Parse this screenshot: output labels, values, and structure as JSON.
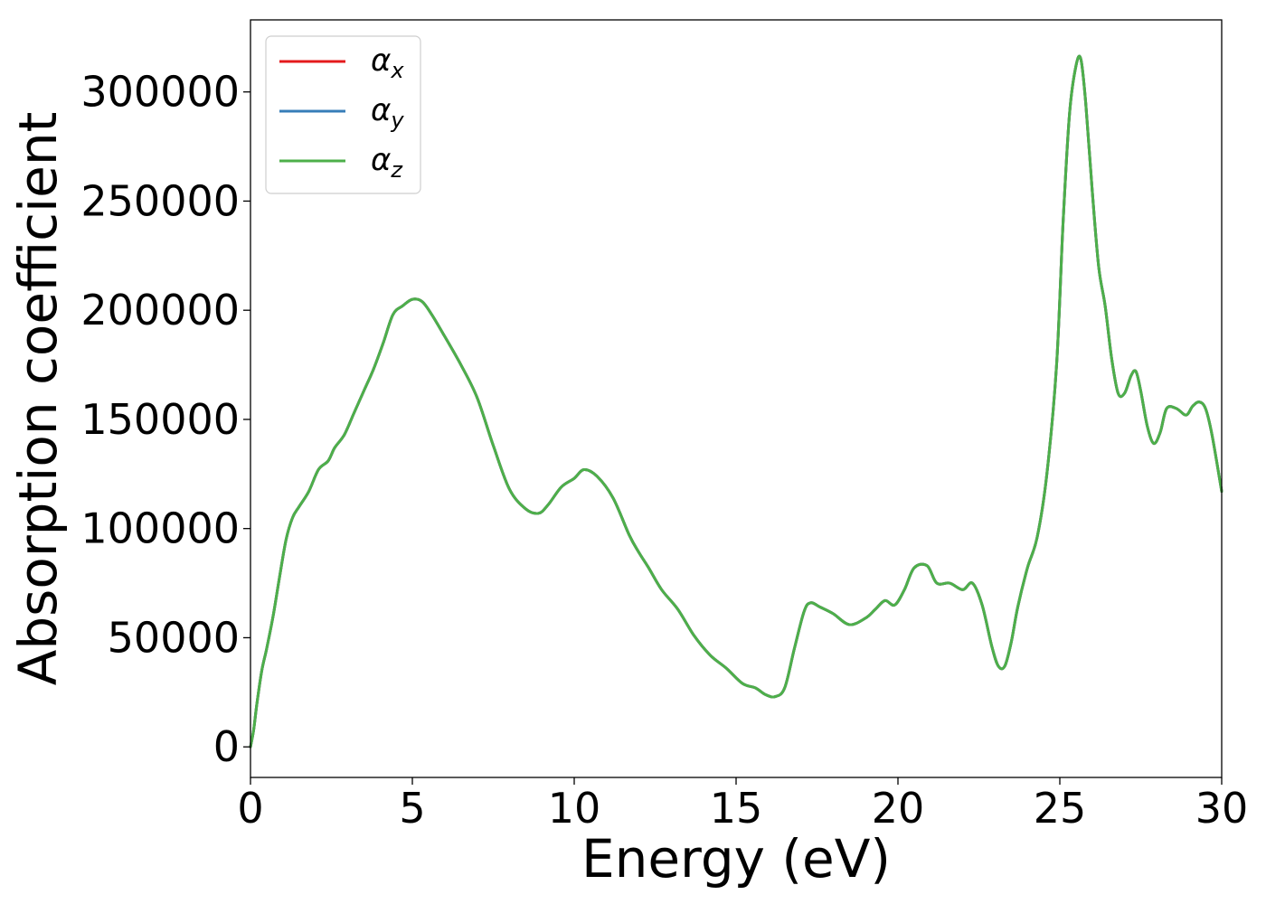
{
  "chart_data": {
    "type": "line",
    "xlabel": "Energy (eV)",
    "ylabel": "Absorption coefficient",
    "xlim": [
      0,
      30
    ],
    "ylim": [
      -14000,
      333000
    ],
    "xticks": [
      0,
      5,
      10,
      15,
      20,
      25,
      30
    ],
    "xtick_labels": [
      "0",
      "5",
      "10",
      "15",
      "20",
      "25",
      "30"
    ],
    "yticks": [
      0,
      50000,
      100000,
      150000,
      200000,
      250000,
      300000
    ],
    "ytick_labels": [
      "0",
      "50000",
      "100000",
      "150000",
      "200000",
      "250000",
      "300000"
    ],
    "grid": false,
    "legend_position": "upper-left",
    "x": [
      0.0,
      0.1,
      0.2,
      0.35,
      0.5,
      0.7,
      0.9,
      1.1,
      1.3,
      1.5,
      1.8,
      2.1,
      2.4,
      2.6,
      2.9,
      3.2,
      3.5,
      3.8,
      4.1,
      4.4,
      4.7,
      5.0,
      5.3,
      5.6,
      6.0,
      6.5,
      7.0,
      7.5,
      8.0,
      8.5,
      8.9,
      9.2,
      9.6,
      10.0,
      10.3,
      10.7,
      11.2,
      11.7,
      12.0,
      12.3,
      12.7,
      13.2,
      13.7,
      14.2,
      14.7,
      15.2,
      15.6,
      15.9,
      16.2,
      16.5,
      16.8,
      17.1,
      17.3,
      17.6,
      18.0,
      18.5,
      19.0,
      19.3,
      19.6,
      19.9,
      20.2,
      20.5,
      20.9,
      21.2,
      21.6,
      22.0,
      22.3,
      22.6,
      22.9,
      23.1,
      23.3,
      23.5,
      23.7,
      24.0,
      24.3,
      24.6,
      24.9,
      25.1,
      25.3,
      25.5,
      25.65,
      25.8,
      26.0,
      26.2,
      26.4,
      26.6,
      26.8,
      27.0,
      27.2,
      27.35,
      27.5,
      27.7,
      27.9,
      28.1,
      28.3,
      28.6,
      28.9,
      29.1,
      29.3,
      29.5,
      29.7,
      30.0
    ],
    "series": [
      {
        "name": "α_x",
        "color": "#e41a1c",
        "values": [
          0,
          8000,
          20000,
          35000,
          45000,
          60000,
          78000,
          95000,
          105000,
          110000,
          117000,
          127000,
          131000,
          137000,
          143000,
          153000,
          163000,
          173000,
          185000,
          198000,
          202000,
          205000,
          204000,
          198000,
          188000,
          175000,
          160000,
          138000,
          118000,
          109000,
          107000,
          111000,
          119000,
          123000,
          127000,
          124000,
          114000,
          97000,
          89000,
          82000,
          72000,
          63000,
          51000,
          42000,
          36000,
          29000,
          27000,
          24000,
          23000,
          27000,
          45000,
          62000,
          66000,
          64000,
          61000,
          56000,
          59000,
          63000,
          67000,
          65000,
          72000,
          82000,
          83000,
          75000,
          75000,
          72000,
          75000,
          65000,
          46000,
          37000,
          37000,
          48000,
          64000,
          82000,
          96000,
          125000,
          175000,
          240000,
          290000,
          312000,
          315000,
          295000,
          255000,
          220000,
          202000,
          178000,
          162000,
          162000,
          170000,
          172000,
          163000,
          147000,
          139000,
          144000,
          155000,
          155000,
          152000,
          156000,
          158000,
          155000,
          143000,
          117000
        ]
      },
      {
        "name": "α_y",
        "color": "#377eb8",
        "values": [
          0,
          8000,
          20000,
          35000,
          45000,
          60000,
          78000,
          95000,
          105000,
          110000,
          117000,
          127000,
          131000,
          137000,
          143000,
          153000,
          163000,
          173000,
          185000,
          198000,
          202000,
          205000,
          204000,
          198000,
          188000,
          175000,
          160000,
          138000,
          118000,
          109000,
          107000,
          111000,
          119000,
          123000,
          127000,
          124000,
          114000,
          97000,
          89000,
          82000,
          72000,
          63000,
          51000,
          42000,
          36000,
          29000,
          27000,
          24000,
          23000,
          27000,
          45000,
          62000,
          66000,
          64000,
          61000,
          56000,
          59000,
          63000,
          67000,
          65000,
          72000,
          82000,
          83000,
          75000,
          75000,
          72000,
          75000,
          65000,
          46000,
          37000,
          37000,
          48000,
          64000,
          82000,
          96000,
          125000,
          175000,
          240000,
          290000,
          312000,
          315000,
          295000,
          255000,
          220000,
          202000,
          178000,
          162000,
          162000,
          170000,
          172000,
          163000,
          147000,
          139000,
          144000,
          155000,
          155000,
          152000,
          156000,
          158000,
          155000,
          143000,
          117000
        ]
      },
      {
        "name": "α_z",
        "color": "#4daf4a",
        "values": [
          0,
          8000,
          20000,
          35000,
          45000,
          60000,
          78000,
          95000,
          105000,
          110000,
          117000,
          127000,
          131000,
          137000,
          143000,
          153000,
          163000,
          173000,
          185000,
          198000,
          202000,
          205000,
          204000,
          198000,
          188000,
          175000,
          160000,
          138000,
          118000,
          109000,
          107000,
          111000,
          119000,
          123000,
          127000,
          124000,
          114000,
          97000,
          89000,
          82000,
          72000,
          63000,
          51000,
          42000,
          36000,
          29000,
          27000,
          24000,
          23000,
          27000,
          45000,
          62000,
          66000,
          64000,
          61000,
          56000,
          59000,
          63000,
          67000,
          65000,
          72000,
          82000,
          83000,
          75000,
          75000,
          72000,
          75000,
          65000,
          46000,
          37000,
          37000,
          48000,
          64000,
          82000,
          96000,
          125000,
          175000,
          240000,
          290000,
          312000,
          315000,
          295000,
          255000,
          220000,
          202000,
          178000,
          162000,
          162000,
          170000,
          172000,
          163000,
          147000,
          139000,
          144000,
          155000,
          155000,
          152000,
          156000,
          158000,
          155000,
          143000,
          117000
        ]
      }
    ],
    "legend": [
      {
        "symbol": "α",
        "sub": "x",
        "color": "#e41a1c"
      },
      {
        "symbol": "α",
        "sub": "y",
        "color": "#377eb8"
      },
      {
        "symbol": "α",
        "sub": "z",
        "color": "#4daf4a"
      }
    ]
  }
}
